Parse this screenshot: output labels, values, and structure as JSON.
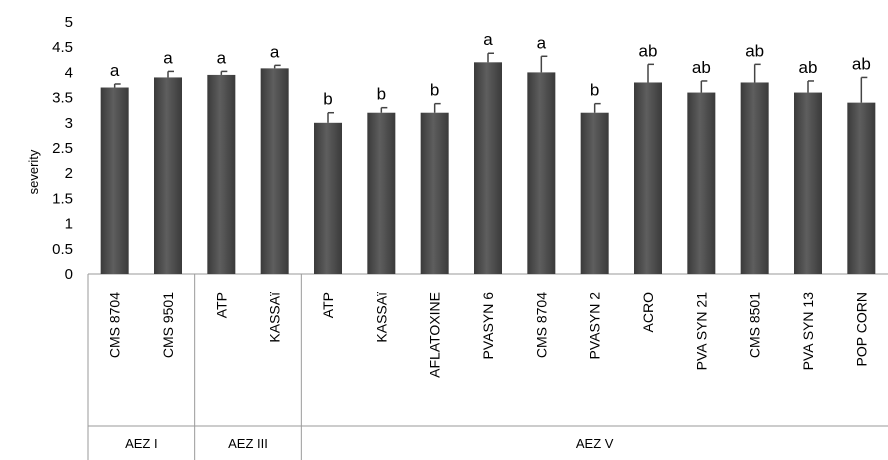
{
  "chart_data": {
    "type": "bar",
    "ylabel": "severity",
    "xlabel": "",
    "ylim": [
      0,
      5
    ],
    "yticks": [
      "0",
      "0.5",
      "1",
      "1.5",
      "2",
      "2.5",
      "3",
      "3.5",
      "4",
      "4.5",
      "5"
    ],
    "grid": false,
    "bar_color": "#505050",
    "groups": [
      {
        "name": "AEZ I",
        "size": 2
      },
      {
        "name": "AEZ III",
        "size": 2
      },
      {
        "name": "AEZ V",
        "size": 11
      }
    ],
    "categories": [
      "CMS 8704",
      "CMS 9501",
      "ATP",
      "KASSAï",
      "ATP",
      "KASSAï",
      "AFLATOXINE",
      "PVASYN 6",
      "CMS 8704",
      "PVASYN 2",
      "ACRO",
      "PVA SYN 21",
      "CMS 8501",
      "PVA SYN 13",
      "POP CORN"
    ],
    "values": [
      3.7,
      3.9,
      3.95,
      4.08,
      3.0,
      3.2,
      3.2,
      4.2,
      4.0,
      3.2,
      3.8,
      3.6,
      3.8,
      3.6,
      3.4
    ],
    "errors": [
      0.07,
      0.12,
      0.07,
      0.06,
      0.2,
      0.1,
      0.18,
      0.18,
      0.32,
      0.18,
      0.36,
      0.23,
      0.36,
      0.23,
      0.5
    ],
    "letters": [
      "a",
      "a",
      "a",
      "a",
      "b",
      "b",
      "b",
      "a",
      "a",
      "b",
      "ab",
      "ab",
      "ab",
      "ab",
      "ab"
    ]
  }
}
